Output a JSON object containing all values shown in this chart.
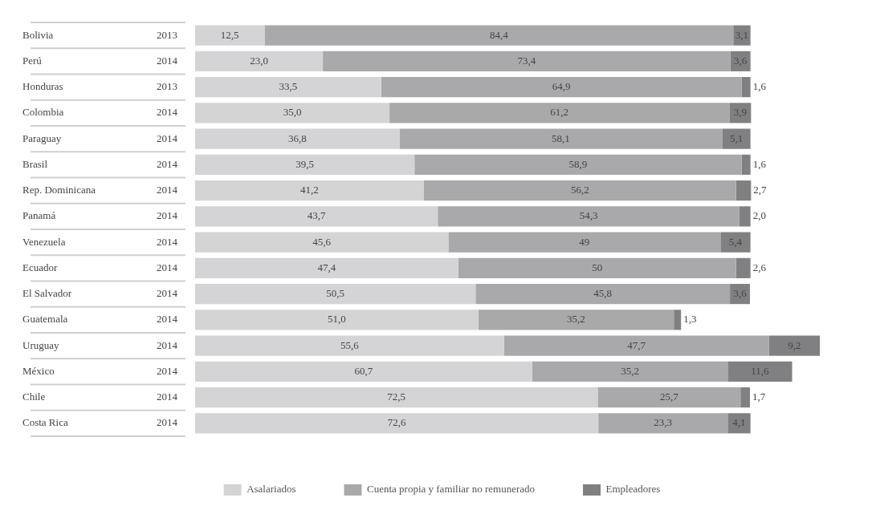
{
  "chart_data": {
    "type": "bar",
    "orientation": "horizontal",
    "stacked": true,
    "grid": false,
    "legend": "bottom",
    "categories": [
      "Bolivia",
      "Perú",
      "Honduras",
      "Colombia",
      "Paraguay",
      "Brasil",
      "Rep. Dominicana",
      "Panamá",
      "Venezuela",
      "Ecuador",
      "El Salvador",
      "Guatemala",
      "Uruguay",
      "México",
      "Chile",
      "Costa Rica"
    ],
    "y2_categories": [
      "2013",
      "2014",
      "2013",
      "2014",
      "2014",
      "2014",
      "2014",
      "2014",
      "2014",
      "2014",
      "2014",
      "2014",
      "2014",
      "2014",
      "2014",
      "2014"
    ],
    "series": [
      {
        "name": "Asalariados",
        "color": "#d4d4d6",
        "values": [
          12.5,
          23.0,
          33.5,
          35.0,
          36.8,
          39.5,
          41.2,
          43.7,
          45.6,
          47.4,
          50.5,
          51.0,
          55.6,
          60.7,
          72.5,
          72.6
        ],
        "value_labels": [
          "12,5",
          "23,0",
          "33,5",
          "35,0",
          "36,8",
          "39,5",
          "41,2",
          "43,7",
          "45,6",
          "47,4",
          "50,5",
          "51,0",
          "55,6",
          "60,7",
          "72,5",
          "72,6"
        ]
      },
      {
        "name": "Cuenta propia y familiar no remunerado",
        "color": "#a9a9ac",
        "values": [
          84.4,
          73.4,
          64.9,
          61.2,
          58.1,
          58.9,
          56.2,
          54.3,
          49,
          50,
          45.8,
          35.2,
          47.7,
          35.2,
          25.7,
          23.3
        ],
        "value_labels": [
          "84,4",
          "73,4",
          "64,9",
          "61,2",
          "58,1",
          "58,9",
          "56,2",
          "54,3",
          "49",
          "50",
          "45,8",
          "35,2",
          "47,7",
          "35,2",
          "25,7",
          "23,3"
        ]
      },
      {
        "name": "Empleadores",
        "color": "#808083",
        "values": [
          3.1,
          3.6,
          1.6,
          3.9,
          5.1,
          1.6,
          2.7,
          2.0,
          5.4,
          2.6,
          3.6,
          1.3,
          9.2,
          11.6,
          1.7,
          4.1
        ],
        "value_labels": [
          "3,1",
          "3,6",
          "1,6",
          "3,9",
          "5,1",
          "1,6",
          "2,7",
          "2,0",
          "5,4",
          "2,6",
          "3,6",
          "1,3",
          "9,2",
          "11,6",
          "1,7",
          "4,1"
        ]
      }
    ]
  }
}
